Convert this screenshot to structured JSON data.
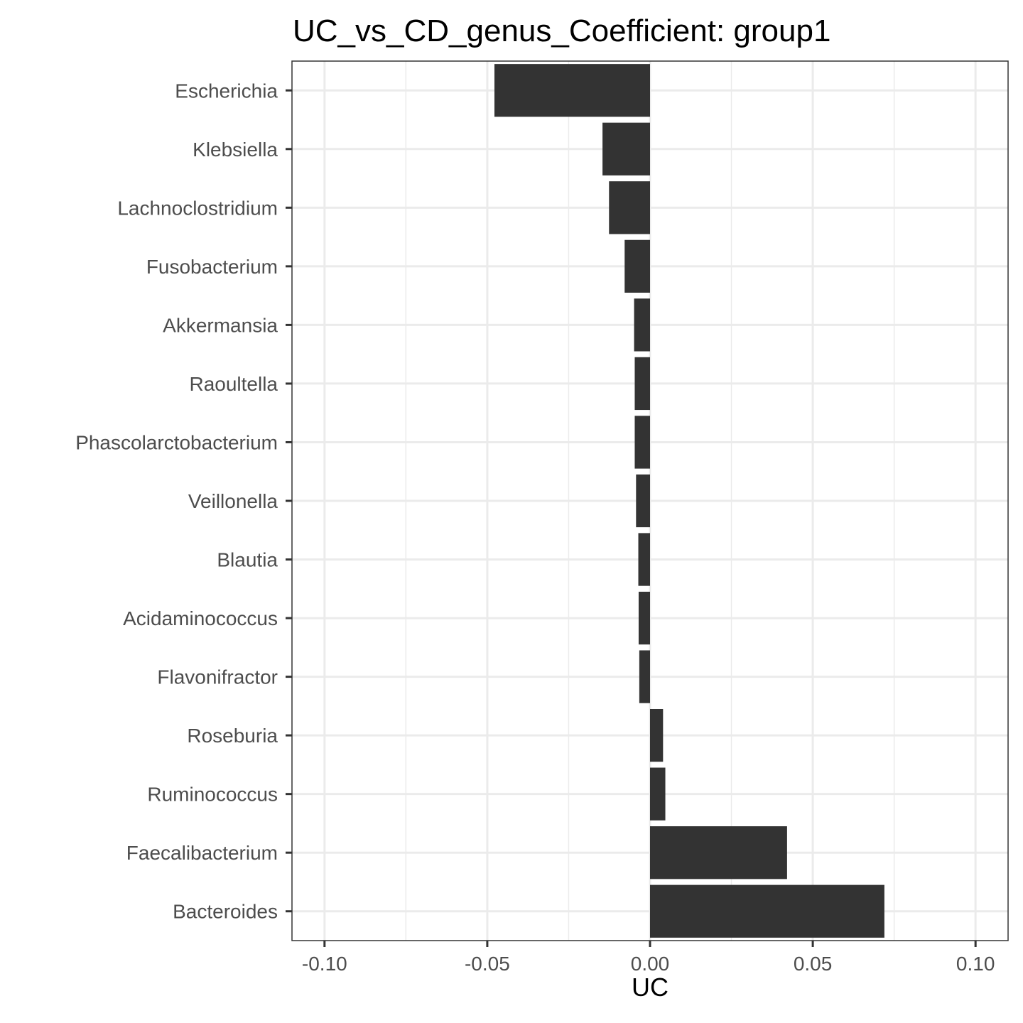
{
  "chart_data": {
    "type": "bar",
    "orientation": "horizontal",
    "title": "UC_vs_CD_genus_Coefficient: group1",
    "xlabel": "UC",
    "ylabel": "",
    "xlim": [
      -0.11,
      0.11
    ],
    "xticks": [
      -0.1,
      -0.05,
      0.0,
      0.05,
      0.1
    ],
    "xtick_labels": [
      "-0.10",
      "-0.05",
      "0.00",
      "0.05",
      "0.10"
    ],
    "grid": true,
    "categories": [
      "Escherichia",
      "Klebsiella",
      "Lachnoclostridium",
      "Fusobacterium",
      "Akkermansia",
      "Raoultella",
      "Phascolarctobacterium",
      "Veillonella",
      "Blautia",
      "Acidaminococcus",
      "Flavonifractor",
      "Roseburia",
      "Ruminococcus",
      "Faecalibacterium",
      "Bacteroides"
    ],
    "values": [
      -0.0478,
      -0.0146,
      -0.0126,
      -0.0078,
      -0.0049,
      -0.0047,
      -0.0047,
      -0.0043,
      -0.0036,
      -0.0035,
      -0.0033,
      0.004,
      0.0047,
      0.0421,
      0.072
    ],
    "bar_color": "#333333"
  }
}
